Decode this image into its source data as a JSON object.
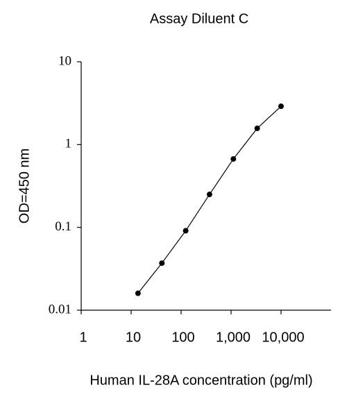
{
  "chart_data": {
    "type": "line",
    "title": "Assay Diluent C",
    "x_label": "Human IL-28A concentration (pg/ml)",
    "y_label": "OD=450 nm",
    "x": [
      13.7,
      41.2,
      123.5,
      370,
      1111,
      3333,
      10000
    ],
    "series": [
      {
        "name": "Assay Diluent C",
        "color": "#000000",
        "values": [
          0.016,
          0.037,
          0.091,
          0.25,
          0.67,
          1.57,
          2.9
        ]
      }
    ],
    "xscale": "log",
    "yscale": "log",
    "xlim": [
      1,
      100000
    ],
    "ylim": [
      0.01,
      10
    ],
    "xticks": [
      1,
      10,
      100,
      {
        "value": 1000,
        "label": "1,000"
      },
      {
        "value": 10000,
        "label": "10,000"
      }
    ],
    "yticks": [
      0.01,
      0.1,
      1,
      10
    ]
  }
}
